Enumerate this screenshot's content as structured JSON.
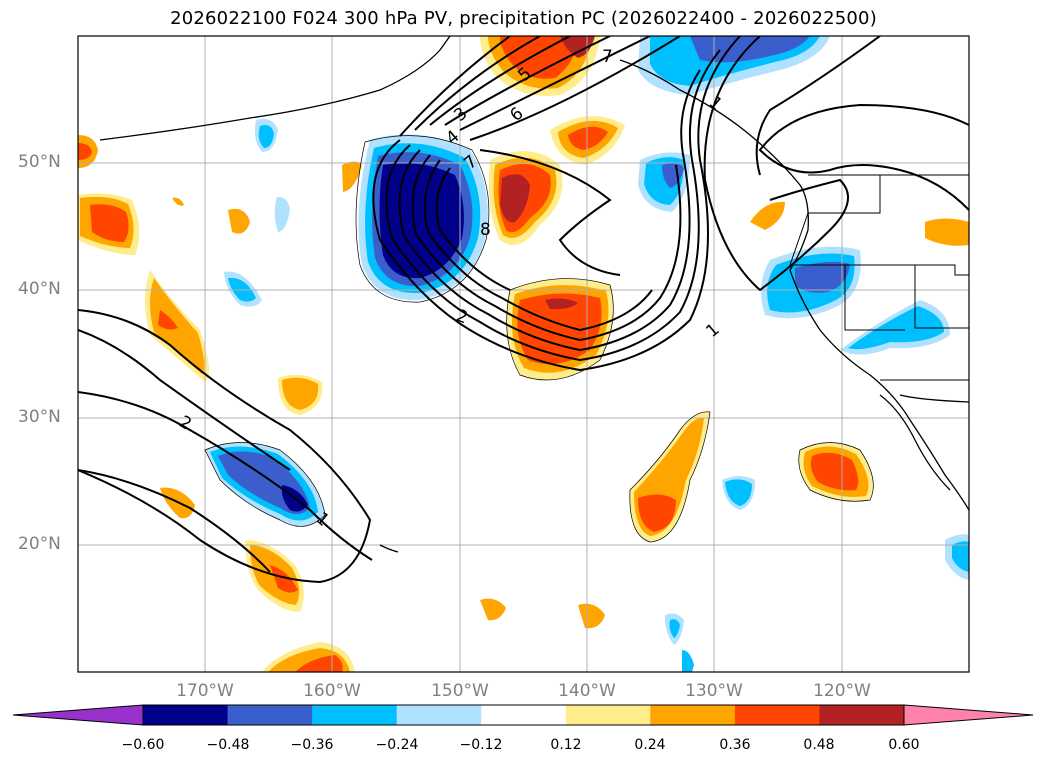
{
  "title": "2026022100 F024 300 hPa PV, precipitation PC (2026022400 - 2026022500)",
  "map": {
    "lon_range": [
      -180,
      -110
    ],
    "lat_range": [
      10,
      60
    ],
    "lat_ticks": [
      {
        "value": 50,
        "label": "50°N"
      },
      {
        "value": 40,
        "label": "40°N"
      },
      {
        "value": 30,
        "label": "30°N"
      },
      {
        "value": 20,
        "label": "20°N"
      }
    ],
    "lon_ticks": [
      {
        "value": -170,
        "label": "170°W"
      },
      {
        "value": -160,
        "label": "160°W"
      },
      {
        "value": -150,
        "label": "150°W"
      },
      {
        "value": -140,
        "label": "140°W"
      },
      {
        "value": -130,
        "label": "130°W"
      },
      {
        "value": -120,
        "label": "120°W"
      }
    ],
    "pv_contour_labels": [
      "1",
      "2",
      "3",
      "4",
      "5",
      "6",
      "7",
      "8",
      "1",
      "2",
      "1",
      "7"
    ]
  },
  "colorbar": {
    "ticks": [
      "−0.60",
      "−0.48",
      "−0.36",
      "−0.24",
      "−0.12",
      "0.12",
      "0.24",
      "0.36",
      "0.48",
      "0.60"
    ],
    "colors": [
      "#9932cc",
      "#00008b",
      "#3a5fcd",
      "#00bfff",
      "#b0e2ff",
      "#ffffff",
      "#ffec8b",
      "#ffa500",
      "#ff4500",
      "#b22222",
      "#ff82ab"
    ]
  }
}
